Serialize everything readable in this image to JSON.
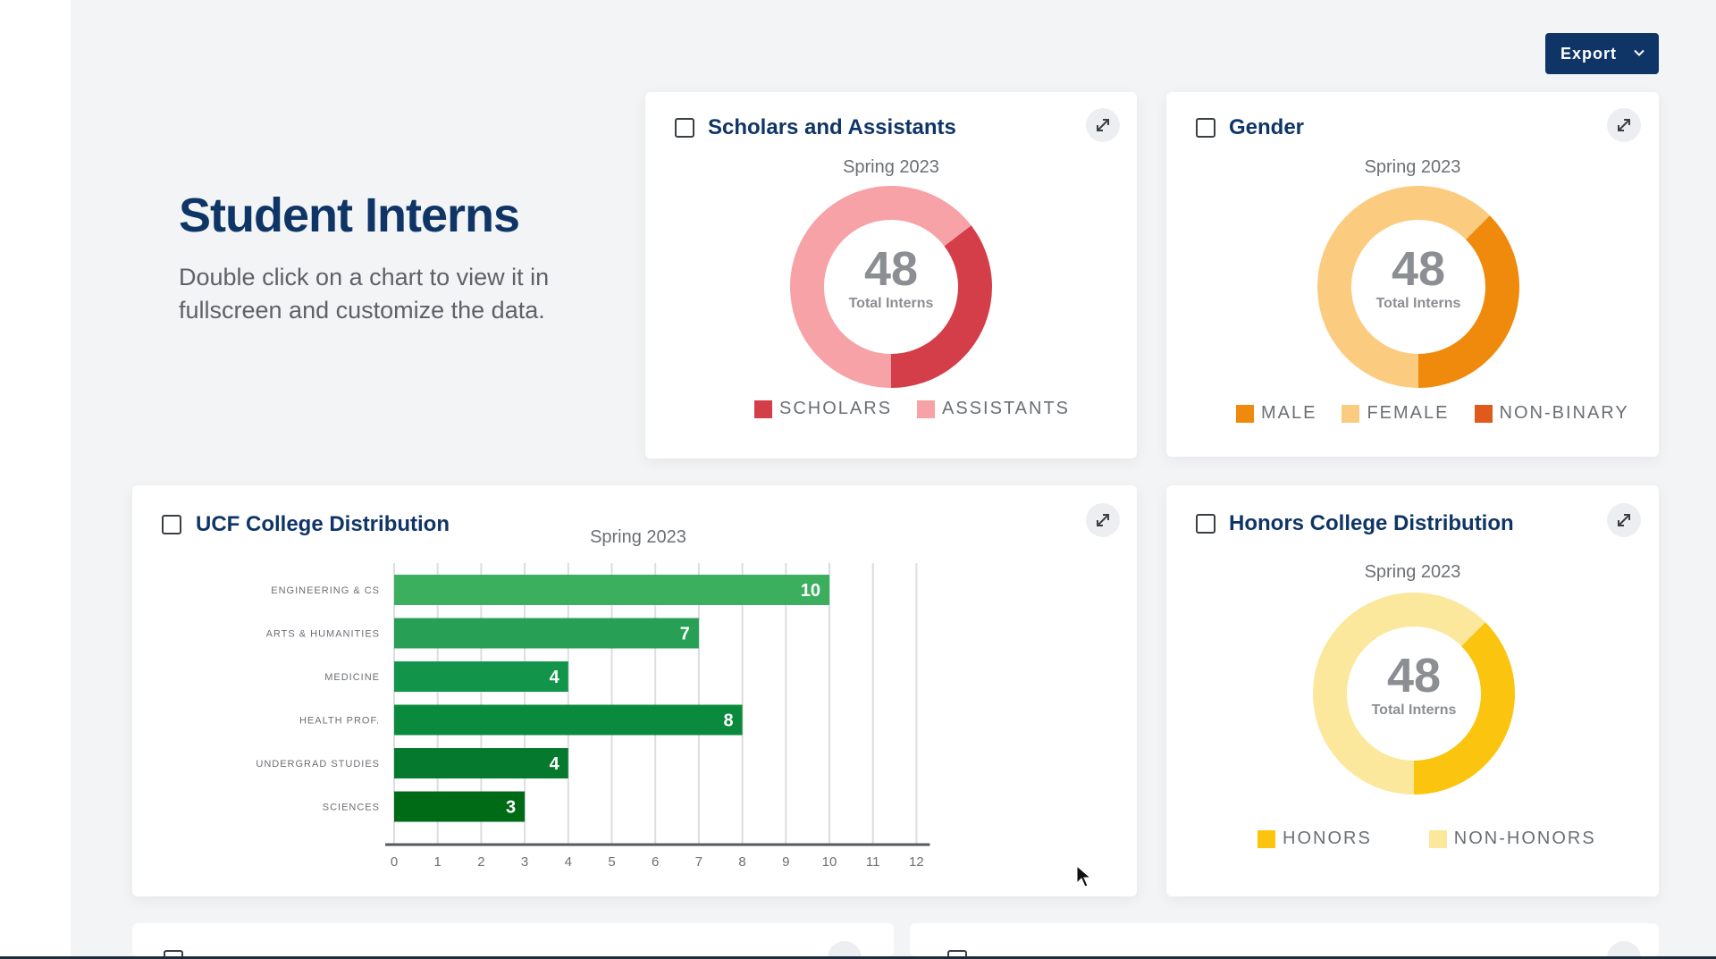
{
  "toolbar": {
    "export_label": "Export"
  },
  "intro": {
    "title": "Student Interns",
    "description": "Double click on a chart to view it in fullscreen and customize the data."
  },
  "cards": {
    "scholars": {
      "title": "Scholars and Assistants",
      "period": "Spring 2023",
      "total": "48",
      "total_label": "Total Interns",
      "legend": [
        {
          "label": "SCHOLARS",
          "color": "#d33e48"
        },
        {
          "label": "ASSISTANTS",
          "color": "#f7a2a7"
        }
      ]
    },
    "gender": {
      "title": "Gender",
      "period": "Spring 2023",
      "total": "48",
      "total_label": "Total Interns",
      "legend": [
        {
          "label": "MALE",
          "color": "#f08a0c"
        },
        {
          "label": "FEMALE",
          "color": "#fbcc80"
        },
        {
          "label": "NON-BINARY",
          "color": "#e05a1c"
        }
      ]
    },
    "college": {
      "title": "UCF College Distribution",
      "period": "Spring 2023"
    },
    "honors": {
      "title": "Honors College Distribution",
      "period": "Spring 2023",
      "total": "48",
      "total_label": "Total Interns",
      "legend": [
        {
          "label": "HONORS",
          "color": "#fbc40e"
        },
        {
          "label": "NON-HONORS",
          "color": "#fce89c"
        }
      ]
    }
  },
  "chart_data": [
    {
      "type": "pie",
      "title": "Scholars and Assistants",
      "subtitle": "Spring 2023",
      "center_value": 48,
      "center_label": "Total Interns",
      "categories": [
        "SCHOLARS",
        "ASSISTANTS"
      ],
      "values": [
        17,
        31
      ],
      "colors": [
        "#d33e48",
        "#f7a2a7"
      ],
      "legend": "bottom"
    },
    {
      "type": "pie",
      "title": "Gender",
      "subtitle": "Spring 2023",
      "center_value": 48,
      "center_label": "Total Interns",
      "categories": [
        "MALE",
        "FEMALE",
        "NON-BINARY"
      ],
      "values": [
        18,
        30,
        0
      ],
      "colors": [
        "#f08a0c",
        "#fbcc80",
        "#e05a1c"
      ],
      "legend": "bottom"
    },
    {
      "type": "bar",
      "orientation": "horizontal",
      "title": "UCF College Distribution",
      "subtitle": "Spring 2023",
      "categories": [
        "ENGINEERING & CS",
        "ARTS & HUMANITIES",
        "MEDICINE",
        "HEALTH PROF.",
        "UNDERGRAD STUDIES",
        "SCIENCES"
      ],
      "values": [
        10,
        7,
        4,
        8,
        4,
        3
      ],
      "colors": [
        "#3caf5e",
        "#27a055",
        "#13944b",
        "#0a8a3c",
        "#057a2f",
        "#006b16"
      ],
      "xlim": [
        0,
        12
      ],
      "xticks": [
        0,
        1,
        2,
        3,
        4,
        5,
        6,
        7,
        8,
        9,
        10,
        11,
        12
      ],
      "grid": true,
      "data_labels": true
    },
    {
      "type": "pie",
      "title": "Honors College Distribution",
      "subtitle": "Spring 2023",
      "center_value": 48,
      "center_label": "Total Interns",
      "categories": [
        "HONORS",
        "NON-HONORS"
      ],
      "values": [
        18,
        30
      ],
      "colors": [
        "#fbc40e",
        "#fce89c"
      ],
      "legend": "bottom"
    }
  ]
}
